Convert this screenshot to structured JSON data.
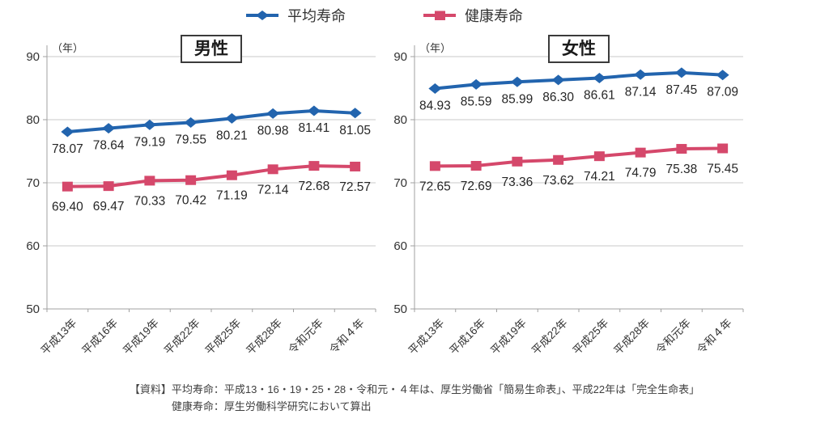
{
  "legend": {
    "items": [
      {
        "label": "平均寿命",
        "color": "#2264AE",
        "marker": "diamond"
      },
      {
        "label": "健康寿命",
        "color": "#D5486B",
        "marker": "square"
      }
    ]
  },
  "chart_data": [
    {
      "type": "line",
      "title": "男性",
      "unit_label": "（年）",
      "xlabel": "",
      "ylabel": "（年）",
      "ylim": [
        50,
        90
      ],
      "yticks": [
        90,
        80,
        70,
        60,
        50
      ],
      "grid": true,
      "legend_position": "top",
      "categories": [
        "平成13年",
        "平成16年",
        "平成19年",
        "平成22年",
        "平成25年",
        "平成28年",
        "令和元年",
        "令和４年"
      ],
      "series": [
        {
          "name": "平均寿命",
          "color": "#2264AE",
          "marker": "diamond",
          "values": [
            78.07,
            78.64,
            79.19,
            79.55,
            80.21,
            80.98,
            81.41,
            81.05
          ]
        },
        {
          "name": "健康寿命",
          "color": "#D5486B",
          "marker": "square",
          "values": [
            69.4,
            69.47,
            70.33,
            70.42,
            71.19,
            72.14,
            72.68,
            72.57
          ]
        }
      ]
    },
    {
      "type": "line",
      "title": "女性",
      "unit_label": "（年）",
      "xlabel": "",
      "ylabel": "（年）",
      "ylim": [
        50,
        90
      ],
      "yticks": [
        90,
        80,
        70,
        60,
        50
      ],
      "grid": true,
      "legend_position": "top",
      "categories": [
        "平成13年",
        "平成16年",
        "平成19年",
        "平成22年",
        "平成25年",
        "平成28年",
        "令和元年",
        "令和４年"
      ],
      "series": [
        {
          "name": "平均寿命",
          "color": "#2264AE",
          "marker": "diamond",
          "values": [
            84.93,
            85.59,
            85.99,
            86.3,
            86.61,
            87.14,
            87.45,
            87.09
          ]
        },
        {
          "name": "健康寿命",
          "color": "#D5486B",
          "marker": "square",
          "values": [
            72.65,
            72.69,
            73.36,
            73.62,
            74.21,
            74.79,
            75.38,
            75.45
          ]
        }
      ]
    }
  ],
  "footer": {
    "line1": "【資料】平均寿命：平成13・16・19・25・28・令和元・４年は、厚生労働省「簡易生命表」、平成22年は「完全生命表」",
    "line2": "健康寿命：厚生労働科学研究において算出"
  },
  "style": {
    "grid_color": "#c9c9c9",
    "axis_color": "#a0a0a0",
    "tick_text_color": "#333333",
    "label_text_color": "#262626"
  }
}
